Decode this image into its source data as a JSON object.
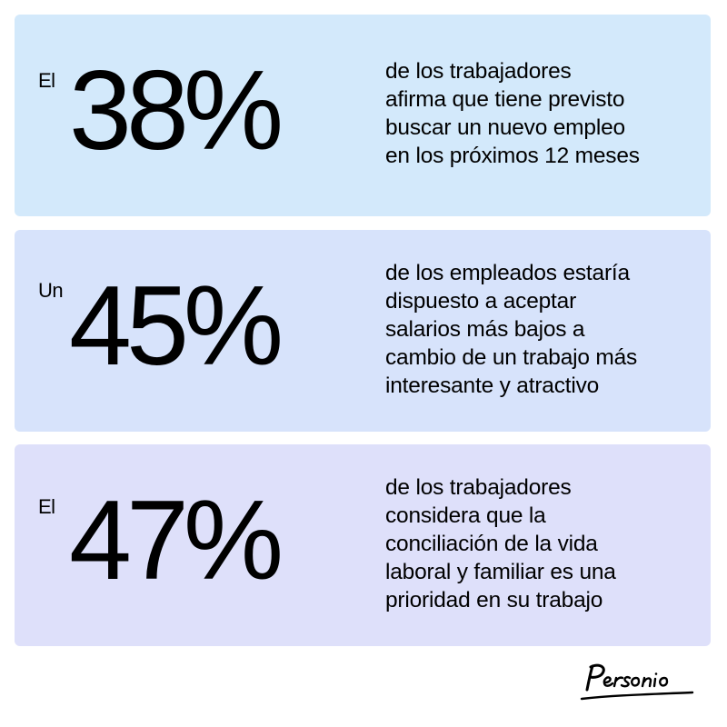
{
  "colors": {
    "card_1_bg": "#d3e9fb",
    "card_2_bg": "#d7e3fb",
    "card_3_bg": "#dee0fa",
    "text": "#000000"
  },
  "stats": [
    {
      "prefix": "El",
      "percent": "38%",
      "lines": [
        "de los trabajadores",
        "afirma que tiene previsto",
        "buscar un nuevo empleo",
        "en los próximos 12 meses"
      ]
    },
    {
      "prefix": "Un",
      "percent": "45%",
      "lines": [
        "de los empleados estaría",
        "dispuesto a aceptar",
        "salarios más bajos a",
        "cambio de un trabajo más",
        "interesante y atractivo"
      ]
    },
    {
      "prefix": "El",
      "percent": "47%",
      "lines": [
        "de los trabajadores",
        "considera que la",
        "conciliación de la vida",
        "laboral y familiar es una",
        "prioridad en su trabajo"
      ]
    }
  ],
  "brand": {
    "logo_text": "Personio",
    "logo_icon": "personio-wordmark"
  }
}
